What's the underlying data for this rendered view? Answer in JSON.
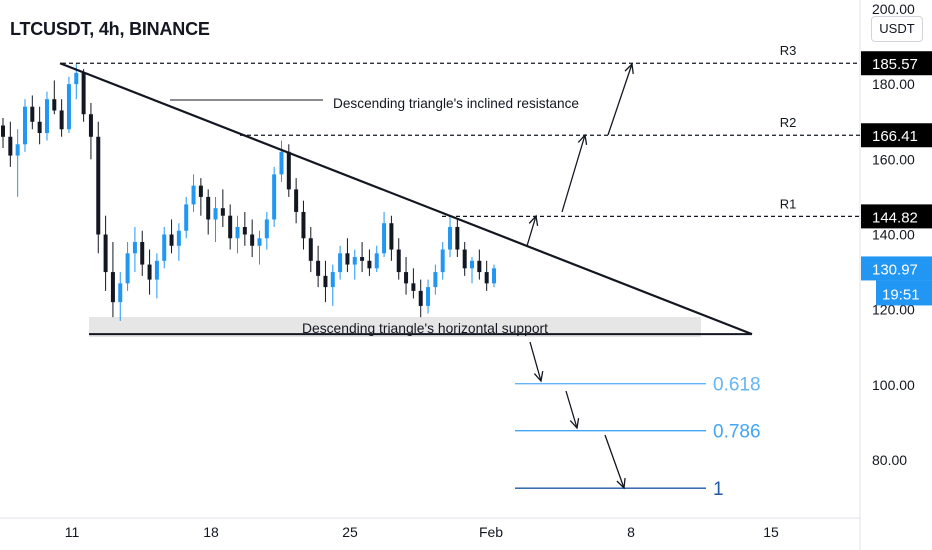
{
  "header": {
    "title": "LTCUSDT, 4h, BINANCE",
    "currency": "USDT"
  },
  "chart_data": {
    "type": "candlestick",
    "symbol": "LTCUSDT",
    "interval": "4h",
    "exchange": "BINANCE",
    "y_ticks": [
      "200.00",
      "180.00",
      "160.00",
      "140.00",
      "120.00",
      "100.00",
      "80.00"
    ],
    "y_tick_values": [
      200,
      180,
      160,
      140,
      120,
      100,
      80
    ],
    "ylim": [
      68,
      206
    ],
    "x_ticks": [
      "11",
      "18",
      "25",
      "Feb",
      "8",
      "15"
    ],
    "price_labels": [
      {
        "label": "185.57",
        "value": 185.57,
        "style": "dark"
      },
      {
        "label": "166.41",
        "value": 166.41,
        "style": "dark"
      },
      {
        "label": "144.82",
        "value": 144.82,
        "style": "dark"
      },
      {
        "label": "130.97",
        "value": 130.97,
        "style": "blue"
      }
    ],
    "countdown": "19:51",
    "levels": [
      {
        "name": "R3",
        "value": 185.57
      },
      {
        "name": "R2",
        "value": 166.41
      },
      {
        "name": "R1",
        "value": 144.82
      }
    ],
    "fib_levels": [
      {
        "label": "0.618",
        "value": 100.3
      },
      {
        "label": "0.786",
        "value": 87.8
      },
      {
        "label": "1",
        "value": 72.5
      }
    ],
    "support_level": 113.5,
    "annotations": {
      "resistance": "Descending triangle's inclined resistance",
      "support": "Descending triangle's horizontal support"
    },
    "candles": [
      [
        169,
        171,
        163,
        166
      ],
      [
        166,
        170,
        158,
        161
      ],
      [
        161,
        168,
        150,
        164
      ],
      [
        164,
        176,
        162,
        174
      ],
      [
        174,
        177,
        168,
        170
      ],
      [
        170,
        174,
        164,
        167
      ],
      [
        167,
        178,
        165,
        176
      ],
      [
        176,
        181,
        172,
        173
      ],
      [
        173,
        176,
        166,
        168
      ],
      [
        168,
        182,
        167,
        180
      ],
      [
        180,
        185.5,
        176,
        183
      ],
      [
        183,
        184,
        170,
        172
      ],
      [
        172,
        175,
        160,
        166
      ],
      [
        166,
        170,
        135,
        140
      ],
      [
        140,
        145,
        125,
        130
      ],
      [
        130,
        138,
        118,
        122
      ],
      [
        122,
        130,
        117,
        127
      ],
      [
        127,
        138,
        125,
        135
      ],
      [
        135,
        142,
        130,
        138
      ],
      [
        138,
        141,
        129,
        132
      ],
      [
        132,
        136,
        124,
        128
      ],
      [
        128,
        135,
        123,
        133
      ],
      [
        133,
        142,
        131,
        140
      ],
      [
        140,
        144,
        135,
        137
      ],
      [
        137,
        143,
        133,
        141
      ],
      [
        141,
        150,
        139,
        148
      ],
      [
        148,
        156,
        146,
        153
      ],
      [
        153,
        155,
        145,
        150
      ],
      [
        150,
        152,
        140,
        144
      ],
      [
        144,
        150,
        138,
        147
      ],
      [
        147,
        152,
        142,
        145
      ],
      [
        145,
        148,
        136,
        139
      ],
      [
        139,
        145,
        135,
        142
      ],
      [
        142,
        146,
        137,
        140
      ],
      [
        140,
        144,
        134,
        137
      ],
      [
        137,
        141,
        132,
        139
      ],
      [
        139,
        146,
        136,
        144
      ],
      [
        144,
        158,
        142,
        156
      ],
      [
        156,
        165,
        154,
        162
      ],
      [
        162,
        164,
        150,
        152
      ],
      [
        152,
        155,
        143,
        146
      ],
      [
        146,
        149,
        136,
        139
      ],
      [
        139,
        142,
        130,
        133
      ],
      [
        133,
        137,
        126,
        129
      ],
      [
        129,
        133,
        122,
        126
      ],
      [
        126,
        132,
        121,
        130
      ],
      [
        130,
        137,
        128,
        135
      ],
      [
        135,
        139,
        130,
        132
      ],
      [
        132,
        136,
        128,
        134
      ],
      [
        134,
        138,
        130,
        133
      ],
      [
        133,
        136,
        129,
        131
      ],
      [
        131,
        137,
        130,
        135
      ],
      [
        135,
        146,
        134,
        143
      ],
      [
        143,
        145,
        133,
        136
      ],
      [
        136,
        139,
        128,
        130
      ],
      [
        130,
        134,
        124,
        127
      ],
      [
        127,
        131,
        123,
        125
      ],
      [
        125,
        128,
        118,
        121
      ],
      [
        121,
        128,
        119,
        126
      ],
      [
        126,
        132,
        124,
        130
      ],
      [
        130,
        138,
        128,
        136
      ],
      [
        136,
        145,
        134,
        142
      ],
      [
        142,
        144,
        134,
        136
      ],
      [
        136,
        138,
        129,
        131
      ],
      [
        131,
        134,
        127,
        133
      ],
      [
        133,
        136,
        128,
        130
      ],
      [
        130,
        133,
        125,
        127
      ],
      [
        127,
        132,
        126,
        131
      ]
    ]
  }
}
